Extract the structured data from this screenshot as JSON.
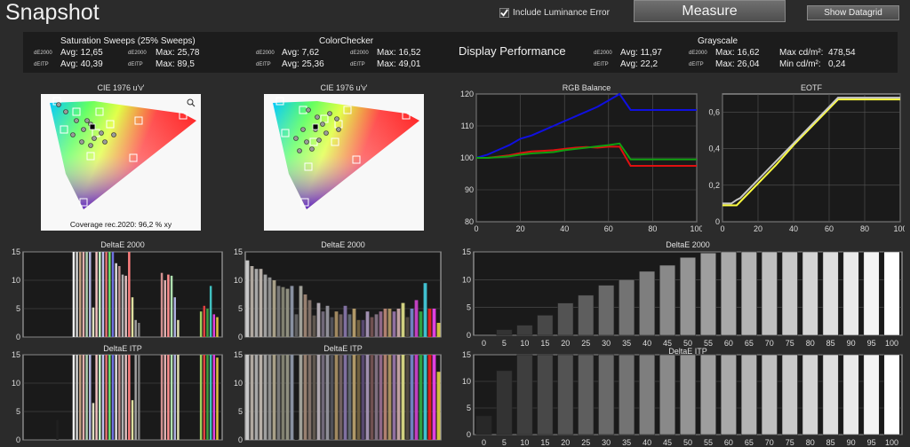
{
  "header": {
    "title": "Snapshot",
    "include_luminance_label": "Include Luminance Error",
    "include_luminance_checked": true,
    "measure_label": "Measure",
    "show_datagrid_label": "Show Datagrid"
  },
  "stats": {
    "saturation": {
      "title": "Saturation Sweeps (25% Sweeps)",
      "de2000_label": "dE2000",
      "deitp_label": "dEITP",
      "de2000_avg": "Avg: 12,65",
      "de2000_max": "Max: 25,78",
      "deitp_avg": "Avg: 40,39",
      "deitp_max": "Max: 89,5"
    },
    "colorchecker": {
      "title": "ColorChecker",
      "de2000_label": "dE2000",
      "deitp_label": "dEITP",
      "de2000_avg": "Avg: 7,62",
      "de2000_max": "Max: 16,52",
      "deitp_avg": "Avg: 25,36",
      "deitp_max": "Max: 49,01"
    },
    "display_performance": "Display Performance",
    "grayscale": {
      "title": "Grayscale",
      "de2000_label": "dE2000",
      "deitp_label": "dEITP",
      "de2000_avg": "Avg: 11,97",
      "de2000_max": "Max: 16,62",
      "deitp_avg": "Avg: 22,2",
      "deitp_max": "Max: 26,04",
      "max_cd_label": "Max cd/m²:",
      "max_cd_value": "478,54",
      "min_cd_label": "Min cd/m²:",
      "min_cd_value": "0,24"
    }
  },
  "cie_left": {
    "title": "CIE 1976 u'v'",
    "coverage": "Coverage rec.2020:  96,2 % xy",
    "zoom_icon": "magnifier-icon"
  },
  "cie_right": {
    "title": "CIE 1976 u'v'"
  },
  "chart_data": [
    {
      "id": "rgb",
      "type": "line",
      "title": "RGB Balance",
      "xlim": [
        0,
        100
      ],
      "ylim": [
        80,
        120
      ],
      "xticks": [
        "0",
        "20",
        "40",
        "60",
        "80",
        "100"
      ],
      "yticks": [
        "80",
        "90",
        "100",
        "110",
        "120"
      ],
      "x": [
        0,
        5,
        10,
        15,
        20,
        25,
        30,
        35,
        40,
        45,
        50,
        55,
        60,
        65,
        70,
        75,
        80,
        85,
        90,
        95,
        100
      ],
      "series": [
        {
          "color": "#1010e0",
          "values": [
            100,
            101,
            102.5,
            104,
            106,
            107,
            108.5,
            110,
            111.5,
            113,
            114.5,
            116,
            118,
            120,
            115,
            115,
            115,
            115,
            115,
            115,
            115
          ]
        },
        {
          "color": "#e01010",
          "values": [
            100,
            100,
            100.4,
            100.8,
            101.5,
            102,
            102.2,
            102.4,
            102.8,
            103.2,
            103.4,
            103.2,
            103.5,
            103.5,
            97.5,
            97.5,
            97.5,
            97.5,
            97.5,
            97.5,
            97.5
          ]
        },
        {
          "color": "#10a010",
          "values": [
            100,
            100,
            100.2,
            100.5,
            101,
            101.4,
            101.6,
            101.8,
            102.4,
            102.8,
            103.2,
            103.6,
            104,
            104.5,
            99.5,
            99.5,
            99.5,
            99.5,
            99.5,
            99.5,
            99.5
          ]
        }
      ]
    },
    {
      "id": "eotf",
      "type": "line",
      "title": "EOTF",
      "xlim": [
        0,
        100
      ],
      "ylim": [
        0,
        0.7
      ],
      "xticks": [
        "0",
        "20",
        "40",
        "60",
        "80",
        "100"
      ],
      "yticks": [
        "0",
        "0,2",
        "0,4",
        "0,6"
      ],
      "ytick_values": [
        0,
        0.2,
        0.4,
        0.6
      ],
      "x": [
        0,
        5,
        8,
        10,
        20,
        30,
        40,
        50,
        60,
        65,
        70,
        80,
        90,
        100
      ],
      "series": [
        {
          "color": "#ffff40",
          "values": [
            0.09,
            0.09,
            0.09,
            0.11,
            0.21,
            0.31,
            0.42,
            0.52,
            0.62,
            0.67,
            0.67,
            0.67,
            0.67,
            0.67
          ]
        },
        {
          "color": "#c8c8c8",
          "values": [
            0.1,
            0.1,
            0.12,
            0.13,
            0.23,
            0.33,
            0.43,
            0.53,
            0.63,
            0.68,
            0.68,
            0.68,
            0.68,
            0.68
          ]
        }
      ]
    },
    {
      "id": "sat_de",
      "type": "bar",
      "title": "DeltaE 2000",
      "ylim": [
        0,
        15
      ],
      "yticks": [
        "0",
        "5",
        "10",
        "15"
      ],
      "values": [
        0,
        0,
        0,
        0,
        0,
        0,
        0,
        0,
        0,
        0,
        0,
        0,
        0,
        0,
        0,
        15,
        15,
        15,
        15,
        15,
        15,
        5.2,
        15,
        15,
        15,
        15,
        15,
        15,
        13,
        12.5,
        11,
        10.8,
        15,
        7,
        3,
        2.5,
        0,
        0,
        0,
        0,
        0,
        0,
        11.3,
        10,
        11,
        10.8,
        7,
        3,
        0,
        0,
        0,
        0,
        0,
        0,
        4.5,
        5.5,
        5,
        9,
        4,
        3.5,
        0
      ],
      "colors": [
        "#444",
        "#444",
        "#444",
        "#444",
        "#444",
        "#444",
        "#444",
        "#444",
        "#444",
        "#444",
        "#444",
        "#444",
        "#444",
        "#444",
        "#444",
        "#f0f0f0",
        "#d0d0d0",
        "#c0a080",
        "#e0b0b0",
        "#b0d0b0",
        "#b0b0e0",
        "#e0e0c0",
        "#f0c0c0",
        "#c0f0c0",
        "#c0c0f0",
        "#e07070",
        "#70e070",
        "#7070e0",
        "#e0e0e0",
        "#c09090",
        "#b0b0b0",
        "#e0c0c0",
        "#ff8080",
        "#e0e0a0",
        "#a0a0a0",
        "#808080",
        "#444",
        "#444",
        "#444",
        "#444",
        "#444",
        "#444",
        "#d09090",
        "#e0b0b0",
        "#ff9090",
        "#b0e0b0",
        "#b0b0e0",
        "#e0e0b0",
        "#444",
        "#444",
        "#444",
        "#444",
        "#444",
        "#444",
        "#a0d060",
        "#e04040",
        "#40a040",
        "#40c0c0",
        "#e040e0",
        "#e0c040",
        "#444"
      ]
    },
    {
      "id": "cc_de",
      "type": "bar",
      "title": "DeltaE 2000",
      "ylim": [
        0,
        15
      ],
      "yticks": [
        "0",
        "5",
        "10",
        "15"
      ],
      "values": [
        13.5,
        12.5,
        12,
        12,
        11,
        10.5,
        10,
        9,
        8.8,
        8.5,
        9,
        4,
        9,
        7.5,
        6.5,
        3.8,
        6,
        4.5,
        5.5,
        3.5,
        4.5,
        4,
        5.5,
        4,
        5,
        3,
        3,
        4.5,
        3.5,
        4,
        4.5,
        5,
        5,
        4.5,
        5,
        6,
        3.5,
        5,
        6.5,
        4.5,
        9.5,
        5,
        5,
        2.5
      ],
      "colors": [
        "#c8c8c8",
        "#b0a8a0",
        "#a8a8a8",
        "#b8b0a8",
        "#a0a0a0",
        "#909090",
        "#a8a088",
        "#787878",
        "#808070",
        "#909080",
        "#8890a0",
        "#606060",
        "#a0a098",
        "#988070",
        "#807068",
        "#605850",
        "#b0a8b0",
        "#706878",
        "#909098",
        "#505058",
        "#a08860",
        "#706060",
        "#8070a0",
        "#606870",
        "#b09868",
        "#706040",
        "#584870",
        "#a090b0",
        "#705050",
        "#807080",
        "#906888",
        "#b08070",
        "#a89060",
        "#9070a0",
        "#c0a0a0",
        "#d0d080",
        "#504840",
        "#7080c0",
        "#c040c0",
        "#30a040",
        "#40c0d0",
        "#e02020",
        "#e040e0",
        "#d0c040"
      ]
    },
    {
      "id": "gray_de",
      "type": "bar",
      "title": "DeltaE 2000",
      "ylim": [
        0,
        15
      ],
      "yticks": [
        "0",
        "5",
        "10",
        "15"
      ],
      "categories": [
        "0",
        "5",
        "10",
        "15",
        "20",
        "25",
        "30",
        "35",
        "40",
        "45",
        "50",
        "55",
        "60",
        "65",
        "70",
        "75",
        "80",
        "85",
        "90",
        "95",
        "100"
      ],
      "values": [
        0,
        1,
        1.8,
        3.6,
        5.8,
        7.2,
        9,
        10,
        11.5,
        12.6,
        14,
        14.8,
        15,
        15,
        15,
        15,
        15,
        15,
        15,
        15,
        15
      ]
    },
    {
      "id": "sat_itp",
      "type": "bar",
      "title": "DeltaE ITP",
      "ylim": [
        0,
        15
      ],
      "yticks": [
        "0",
        "5",
        "10",
        "15"
      ],
      "values": [
        0,
        0,
        0,
        0,
        0,
        0,
        0,
        0,
        0,
        0,
        3.5,
        0,
        0,
        0,
        0,
        15,
        15,
        15,
        15,
        15,
        15,
        6.5,
        15,
        15,
        15,
        15,
        15,
        15,
        15,
        15,
        15,
        15,
        15,
        7,
        15,
        15,
        0,
        0,
        0,
        0,
        0,
        0,
        15,
        15,
        15,
        15,
        15,
        15,
        0,
        0,
        0,
        0,
        0,
        0,
        15,
        15,
        15,
        15,
        15,
        14.5,
        0
      ],
      "colors": [
        "#444",
        "#444",
        "#444",
        "#444",
        "#444",
        "#444",
        "#444",
        "#444",
        "#444",
        "#444",
        "#202020",
        "#444",
        "#444",
        "#444",
        "#444",
        "#f0f0f0",
        "#d0d0d0",
        "#c0a080",
        "#e0b0b0",
        "#b0d0b0",
        "#b0b0e0",
        "#e0e0c0",
        "#f0c0c0",
        "#c0f0c0",
        "#c0c0f0",
        "#e07070",
        "#70e070",
        "#7070e0",
        "#e0e0e0",
        "#c09090",
        "#b0b0b0",
        "#e0c0c0",
        "#ff8080",
        "#e0e0a0",
        "#a0a0a0",
        "#808080",
        "#444",
        "#444",
        "#444",
        "#444",
        "#444",
        "#444",
        "#d09090",
        "#e0b0b0",
        "#ff9090",
        "#b0e0b0",
        "#b0b0e0",
        "#e0e0b0",
        "#444",
        "#444",
        "#444",
        "#444",
        "#444",
        "#444",
        "#a0d060",
        "#e04040",
        "#40a040",
        "#40c0c0",
        "#e040e0",
        "#e0c040",
        "#444"
      ]
    },
    {
      "id": "cc_itp",
      "type": "bar",
      "title": "DeltaE ITP",
      "ylim": [
        0,
        15
      ],
      "yticks": [
        "0",
        "5",
        "10",
        "15"
      ],
      "values": [
        15,
        15,
        15,
        15,
        15,
        15,
        15,
        15,
        15,
        15,
        15,
        3.5,
        15,
        15,
        15,
        15,
        15,
        15,
        15,
        15,
        15,
        15,
        15,
        15,
        15,
        15,
        15,
        15,
        15,
        15,
        15,
        15,
        15,
        15,
        15,
        15,
        15,
        15,
        15,
        15,
        15,
        15,
        15,
        12
      ],
      "colors": [
        "#c8c8c8",
        "#b0a8a0",
        "#a8a8a8",
        "#b8b0a8",
        "#a0a0a0",
        "#909090",
        "#a8a088",
        "#787878",
        "#808070",
        "#909080",
        "#8890a0",
        "#202020",
        "#a0a098",
        "#988070",
        "#807068",
        "#605850",
        "#b0a8b0",
        "#706878",
        "#909098",
        "#505058",
        "#a08860",
        "#706060",
        "#8070a0",
        "#606870",
        "#b09868",
        "#706040",
        "#584870",
        "#a090b0",
        "#705050",
        "#807080",
        "#906888",
        "#b08070",
        "#a89060",
        "#9070a0",
        "#c0a0a0",
        "#d0d080",
        "#504840",
        "#7080c0",
        "#c040c0",
        "#30a040",
        "#40c0d0",
        "#e02020",
        "#e040e0",
        "#d0c040"
      ]
    },
    {
      "id": "gray_itp",
      "type": "bar",
      "title": "DeltaE ITP",
      "ylim": [
        0,
        15
      ],
      "yticks": [
        "0",
        "5",
        "10",
        "15"
      ],
      "categories": [
        "0",
        "5",
        "10",
        "15",
        "20",
        "25",
        "30",
        "35",
        "40",
        "45",
        "50",
        "55",
        "60",
        "65",
        "70",
        "75",
        "80",
        "85",
        "90",
        "95",
        "100"
      ],
      "values": [
        3.5,
        12,
        15,
        15,
        15,
        15,
        15,
        15,
        15,
        15,
        15,
        15,
        15,
        15,
        15,
        15,
        15,
        15,
        15,
        15,
        15
      ]
    }
  ]
}
